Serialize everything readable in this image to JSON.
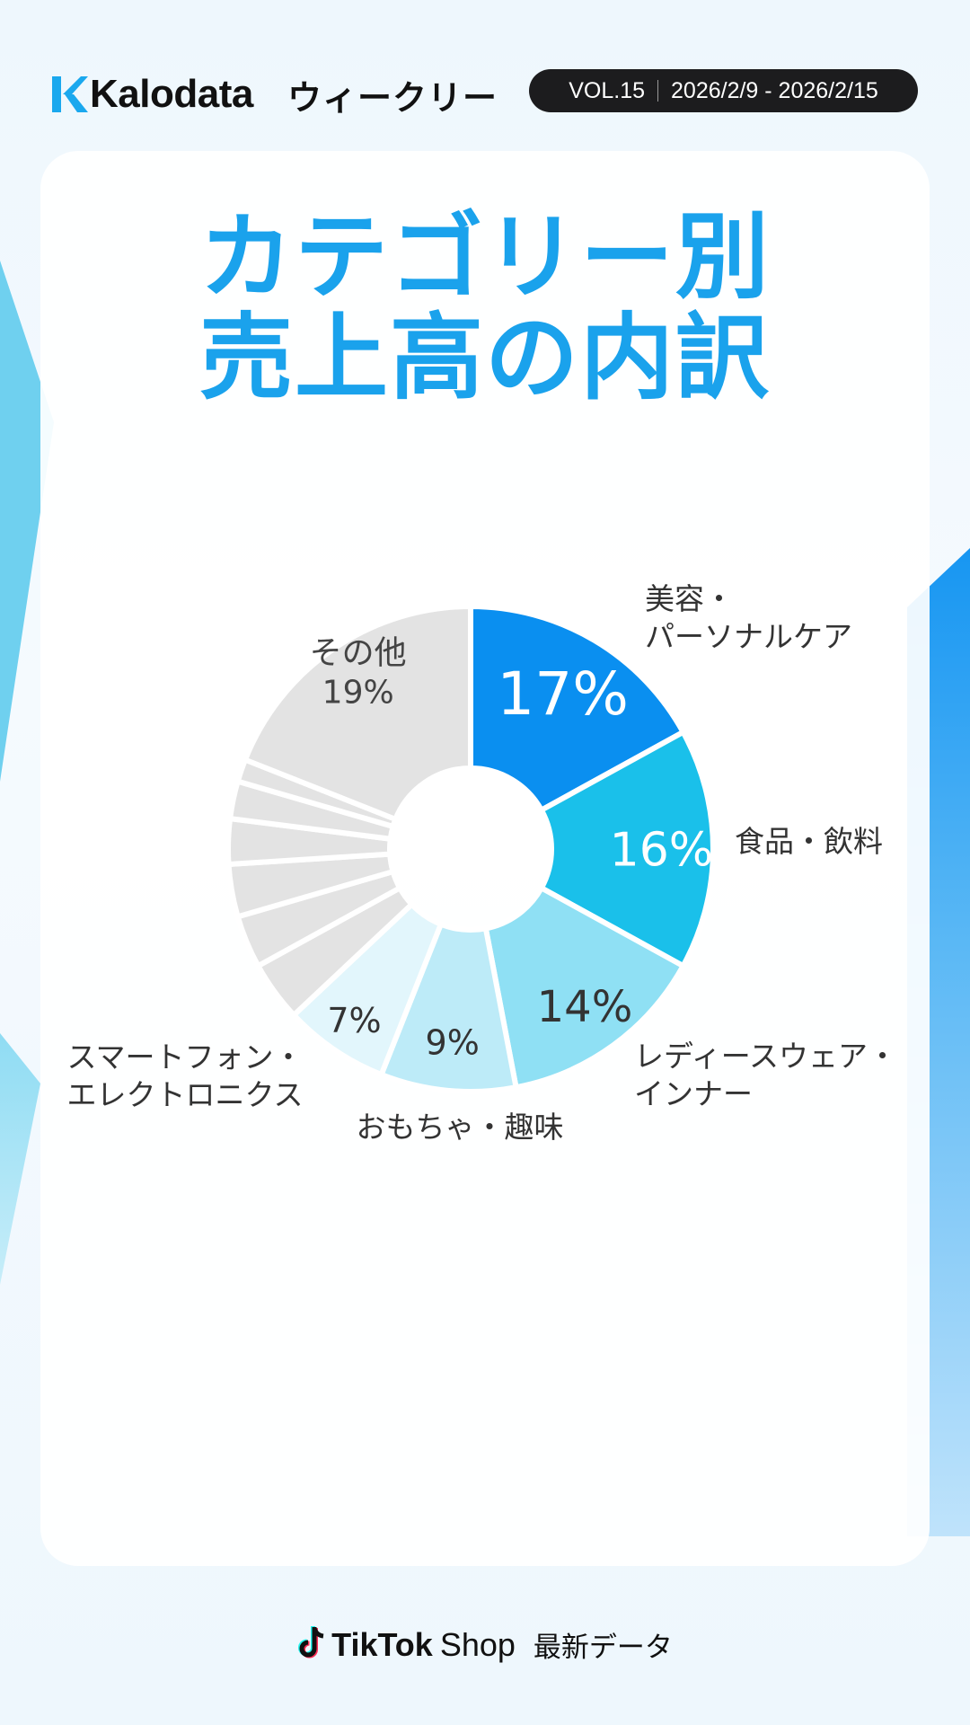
{
  "header": {
    "brand": "Kalodata",
    "weekly": "ウィークリー",
    "volume": "VOL.15",
    "date_range": "2026/2/9 - 2026/2/15"
  },
  "title_lines": [
    "カテゴリー別",
    "売上高の内訳"
  ],
  "chart_data": {
    "type": "pie",
    "donut": true,
    "slices": [
      {
        "label": "美容・\nパーソナルケア",
        "value": 17,
        "value_label": "17%",
        "color": "#0a8ff0",
        "text_color": "#ffffff"
      },
      {
        "label": "食品・飲料",
        "value": 16,
        "value_label": "16%",
        "color": "#1ac0ea",
        "text_color": "#ffffff"
      },
      {
        "label": "レディースウェア・\nインナー",
        "value": 14,
        "value_label": "14%",
        "color": "#8fe0f4",
        "text_color": "#333333"
      },
      {
        "label": "おもちゃ・趣味",
        "value": 9,
        "value_label": "9%",
        "color": "#bdebf8",
        "text_color": "#333333"
      },
      {
        "label": "スマートフォン・\nエレクトロニクス",
        "value": 7,
        "value_label": "7%",
        "color": "#e2f6fc",
        "text_color": "#333333"
      },
      {
        "label": "",
        "value": 4,
        "value_label": "",
        "color": "#e3e3e3",
        "text_color": "#333333"
      },
      {
        "label": "",
        "value": 3.5,
        "value_label": "",
        "color": "#e3e3e3",
        "text_color": "#333333"
      },
      {
        "label": "",
        "value": 3.5,
        "value_label": "",
        "color": "#e3e3e3",
        "text_color": "#333333"
      },
      {
        "label": "",
        "value": 3,
        "value_label": "",
        "color": "#e3e3e3",
        "text_color": "#333333"
      },
      {
        "label": "",
        "value": 2.5,
        "value_label": "",
        "color": "#e3e3e3",
        "text_color": "#333333"
      },
      {
        "label": "",
        "value": 1.5,
        "value_label": "",
        "color": "#e3e3e3",
        "text_color": "#333333"
      },
      {
        "label": "その他",
        "value": 19,
        "value_label": "19%",
        "color": "#e3e3e3",
        "text_color": "#444444"
      }
    ]
  },
  "footer": {
    "brand": "TikTok",
    "shop": "Shop",
    "latest": "最新データ"
  },
  "colors": {
    "accent": "#1aa2ec",
    "badge_bg": "#1c1c1e"
  }
}
